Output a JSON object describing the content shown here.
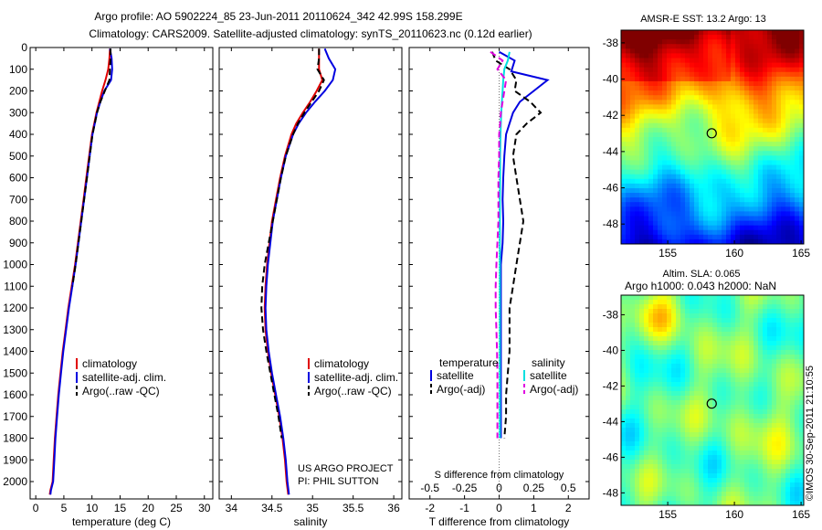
{
  "header": {
    "line1": "Argo profile: AO 5902224_85 23-Jun-2011 20110624_342 42.99S 158.299E",
    "line2": "Climatology: CARS2009. Satellite-adjusted climatology: synTS_20110623.nc (0.12d earlier)"
  },
  "watermark": "©IMOS 30-Sep-2011 21:10:55",
  "credit": {
    "line1": "US ARGO PROJECT",
    "line2": "PI: PHIL SUTTON"
  },
  "colors": {
    "climatology": "#e00000",
    "satellite": "#0000e0",
    "argo": "#000000",
    "satellite_s": "#00e0e0",
    "argo_s": "#e000e0"
  },
  "chart_data": [
    {
      "type": "line",
      "id": "temperature",
      "xlabel": "temperature (deg C)",
      "ylabel": "",
      "xlim": [
        -1,
        31.5
      ],
      "ylim": [
        2080,
        0
      ],
      "xticks": [
        0,
        5,
        10,
        15,
        20,
        25,
        30
      ],
      "yticks": [
        0,
        100,
        200,
        300,
        400,
        500,
        600,
        700,
        800,
        900,
        1000,
        1100,
        1200,
        1300,
        1400,
        1500,
        1600,
        1700,
        1800,
        1900,
        2000
      ],
      "legend": {
        "position": "lower-center",
        "entries": [
          "climatology",
          "satellite-adj. clim.",
          "Argo(..raw -QC)"
        ]
      },
      "series": [
        {
          "name": "climatology",
          "color": "#e00000",
          "dash": false,
          "x": [
            13.2,
            13.1,
            12.9,
            12.4,
            11.8,
            11.3,
            10.8,
            10.4,
            10.0,
            9.5,
            9.0,
            8.5,
            8.0,
            7.5,
            7.0,
            6.4,
            5.8,
            5.3,
            4.8,
            4.4,
            4.0,
            3.7,
            3.4,
            3.2,
            3.0,
            2.8,
            2.6,
            2.5
          ],
          "y": [
            5,
            50,
            100,
            150,
            200,
            250,
            300,
            350,
            400,
            500,
            600,
            700,
            800,
            900,
            1000,
            1100,
            1200,
            1300,
            1400,
            1500,
            1600,
            1700,
            1800,
            1900,
            2000,
            2020,
            2040,
            2060
          ]
        },
        {
          "name": "satellite-adj. clim.",
          "color": "#0000e0",
          "dash": false,
          "x": [
            13.2,
            13.5,
            13.6,
            13.4,
            12.2,
            11.5,
            10.9,
            10.5,
            10.1,
            9.6,
            9.1,
            8.6,
            8.1,
            7.6,
            7.1,
            6.5,
            5.9,
            5.4,
            4.9,
            4.5,
            4.1,
            3.8,
            3.5,
            3.3,
            3.1,
            2.9,
            2.7,
            2.6
          ],
          "y": [
            5,
            50,
            100,
            150,
            200,
            250,
            300,
            350,
            400,
            500,
            600,
            700,
            800,
            900,
            1000,
            1100,
            1200,
            1300,
            1400,
            1500,
            1600,
            1700,
            1800,
            1900,
            2000,
            2020,
            2040,
            2060
          ]
        },
        {
          "name": "Argo(..raw -QC)",
          "color": "#000000",
          "dash": true,
          "x": [
            13.3,
            13.3,
            13.2,
            13.1,
            12.3,
            11.5,
            10.9,
            10.5,
            10.1,
            9.6,
            9.1,
            8.6,
            8.1,
            7.6,
            7.1,
            6.5
          ],
          "y": [
            5,
            50,
            100,
            150,
            200,
            250,
            300,
            350,
            400,
            500,
            600,
            700,
            800,
            900,
            1000,
            1100
          ]
        }
      ]
    },
    {
      "type": "line",
      "id": "salinity",
      "xlabel": "salinity",
      "ylabel": "",
      "xlim": [
        33.85,
        36.1
      ],
      "ylim": [
        2080,
        0
      ],
      "xticks": [
        34,
        34.5,
        35,
        35.5,
        36
      ],
      "yticks": [
        0,
        100,
        200,
        300,
        400,
        500,
        600,
        700,
        800,
        900,
        1000,
        1100,
        1200,
        1300,
        1400,
        1500,
        1600,
        1700,
        1800,
        1900,
        2000
      ],
      "legend": {
        "position": "lower-right",
        "entries": [
          "climatology",
          "satellite-adj. clim.",
          "Argo(..raw -QC)"
        ]
      },
      "series": [
        {
          "name": "climatology",
          "color": "#e00000",
          "dash": false,
          "x": [
            35.08,
            35.08,
            35.08,
            35.12,
            35.05,
            34.97,
            34.88,
            34.8,
            34.74,
            34.66,
            34.6,
            34.55,
            34.5,
            34.47,
            34.44,
            34.42,
            34.41,
            34.42,
            34.45,
            34.49,
            34.54,
            34.59,
            34.63,
            34.66,
            34.68,
            34.7
          ],
          "y": [
            5,
            50,
            100,
            150,
            200,
            250,
            300,
            350,
            400,
            500,
            600,
            700,
            800,
            900,
            1000,
            1100,
            1200,
            1300,
            1400,
            1500,
            1600,
            1700,
            1800,
            1900,
            2000,
            2060
          ]
        },
        {
          "name": "satellite-adj. clim.",
          "color": "#0000e0",
          "dash": false,
          "x": [
            35.15,
            35.2,
            35.28,
            35.25,
            35.15,
            35.03,
            34.92,
            34.83,
            34.76,
            34.67,
            34.61,
            34.56,
            34.51,
            34.48,
            34.45,
            34.43,
            34.42,
            34.43,
            34.46,
            34.5,
            34.55,
            34.6,
            34.64,
            34.67,
            34.69,
            34.71
          ],
          "y": [
            5,
            50,
            100,
            150,
            200,
            250,
            300,
            350,
            400,
            500,
            600,
            700,
            800,
            900,
            1000,
            1100,
            1200,
            1300,
            1400,
            1500,
            1600,
            1700,
            1800,
            1900,
            2000,
            2060
          ]
        },
        {
          "name": "Argo(..raw -QC)",
          "color": "#000000",
          "dash": true,
          "x": [
            35.08,
            35.08,
            35.06,
            35.14,
            35.08,
            34.99,
            34.9,
            34.82,
            34.76,
            34.67,
            34.61,
            34.56,
            34.51,
            34.46,
            34.41,
            34.38,
            34.37,
            34.39,
            34.43,
            34.48,
            34.53,
            34.58,
            34.62
          ],
          "y": [
            5,
            50,
            100,
            150,
            200,
            250,
            300,
            350,
            400,
            500,
            600,
            700,
            800,
            900,
            1000,
            1100,
            1200,
            1300,
            1400,
            1500,
            1600,
            1700,
            1800
          ]
        }
      ]
    },
    {
      "type": "line",
      "id": "difference",
      "xlabel": "T difference from climatology",
      "xlabel_top": "S difference from climatology",
      "ylabel": "",
      "xlim": [
        -2.6,
        2.6
      ],
      "ylim": [
        2080,
        0
      ],
      "xticks": [
        -2,
        -1,
        0,
        1,
        2
      ],
      "xticks_top": [
        "-0.5",
        "-0.25",
        "0",
        "0.25",
        "0.5"
      ],
      "legend": {
        "position": "lower-center",
        "temperature_title": "temperature",
        "salinity_title": "salinity",
        "entries": [
          "satellite",
          "Argo(-adj)",
          "satellite",
          "Argo(-adj)"
        ]
      },
      "series": [
        {
          "name": "satellite",
          "group": "temperature",
          "color": "#0000e0",
          "dash": false,
          "x": [
            0.0,
            0.45,
            0.35,
            1.4,
            1.0,
            0.6,
            0.4,
            0.3,
            0.2,
            0.15,
            0.12,
            0.1,
            0.12,
            0.1,
            0.05,
            0.05,
            0.05,
            0.05,
            0.05,
            0.05,
            0.05,
            0.05,
            0.05
          ],
          "y": [
            20,
            60,
            110,
            150,
            200,
            250,
            300,
            350,
            400,
            500,
            600,
            700,
            800,
            900,
            1000,
            1100,
            1200,
            1300,
            1400,
            1500,
            1600,
            1700,
            1800
          ]
        },
        {
          "name": "Argo(-adj)",
          "group": "temperature",
          "color": "#000000",
          "dash": true,
          "x": [
            -0.2,
            -0.1,
            0.3,
            0.5,
            0.45,
            0.9,
            1.2,
            0.8,
            0.5,
            0.4,
            0.5,
            0.6,
            0.7,
            0.6,
            0.5,
            0.4,
            0.3,
            0.3,
            0.3,
            0.25,
            0.2,
            0.2,
            0.15
          ],
          "y": [
            20,
            60,
            100,
            150,
            200,
            250,
            300,
            350,
            400,
            500,
            600,
            700,
            800,
            900,
            1000,
            1100,
            1200,
            1300,
            1400,
            1500,
            1600,
            1700,
            1800
          ]
        },
        {
          "name": "satellite",
          "group": "salinity",
          "color": "#00e0e0",
          "dash": false,
          "x": [
            0.3,
            0.25,
            0.15,
            0.12,
            0.1,
            0.08,
            0.06,
            0.05,
            0.04,
            0.03,
            0.03,
            0.02,
            0.02,
            0.02,
            0.02,
            0.02,
            0.02,
            0.02,
            0.02,
            0.02,
            0.02,
            0.02,
            0.02
          ],
          "y": [
            20,
            60,
            100,
            150,
            200,
            250,
            300,
            350,
            400,
            500,
            600,
            700,
            800,
            900,
            1000,
            1100,
            1200,
            1300,
            1400,
            1500,
            1600,
            1700,
            1800
          ]
        },
        {
          "name": "Argo(-adj)",
          "group": "salinity",
          "color": "#e000e0",
          "dash": true,
          "x": [
            -0.25,
            0.1,
            -0.05,
            0.2,
            0.15,
            0.1,
            0.05,
            0.03,
            0.0,
            0.0,
            -0.02,
            -0.02,
            -0.02,
            -0.05,
            -0.08,
            -0.1,
            -0.1,
            -0.08,
            -0.06,
            -0.05,
            -0.05,
            -0.05,
            -0.05
          ],
          "y": [
            20,
            60,
            100,
            150,
            200,
            250,
            300,
            350,
            400,
            500,
            600,
            700,
            800,
            900,
            1000,
            1100,
            1200,
            1300,
            1400,
            1500,
            1600,
            1700,
            1800
          ]
        }
      ]
    },
    {
      "type": "heatmap",
      "id": "sst-map",
      "title": "AMSR-E SST: 13.2 Argo: 13",
      "xlim": [
        151.5,
        165.2
      ],
      "ylim": [
        -49.1,
        -37.3
      ],
      "xticks": [
        155,
        160,
        165
      ],
      "yticks": [
        -38,
        -40,
        -42,
        -44,
        -46,
        -48
      ],
      "colorscale": "jet",
      "marker": {
        "lon": 158.299,
        "lat": -42.99
      }
    },
    {
      "type": "heatmap",
      "id": "sla-map",
      "title": "Altim. SLA: 0.065",
      "subtitle": "Argo h1000: 0.043 h2000: NaN",
      "xlim": [
        151.5,
        165.2
      ],
      "ylim": [
        -48.7,
        -36.9
      ],
      "xticks": [
        155,
        160,
        165
      ],
      "yticks": [
        -38,
        -40,
        -42,
        -44,
        -46,
        -48
      ],
      "colorscale": "jet",
      "marker": {
        "lon": 158.299,
        "lat": -42.99
      }
    }
  ]
}
